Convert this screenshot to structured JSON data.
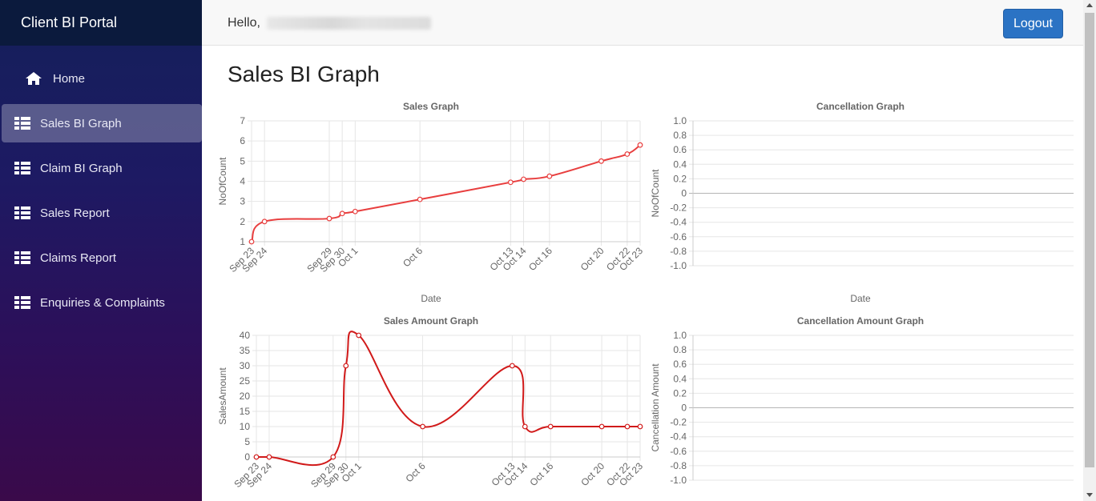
{
  "app": {
    "title": "Client BI Portal"
  },
  "sidebar": {
    "items": [
      {
        "label": "Home",
        "icon": "home-icon"
      },
      {
        "label": "Sales BI Graph",
        "icon": "dashboard-icon",
        "active": true
      },
      {
        "label": "Claim BI Graph",
        "icon": "dashboard-icon"
      },
      {
        "label": "Sales Report",
        "icon": "dashboard-icon"
      },
      {
        "label": "Claims Report",
        "icon": "dashboard-icon"
      },
      {
        "label": "Enquiries & Complaints",
        "icon": "dashboard-icon"
      }
    ]
  },
  "header": {
    "greeting": "Hello,",
    "logout_label": "Logout"
  },
  "page": {
    "title": "Sales BI Graph"
  },
  "colors": {
    "accent": "#2b73c4",
    "series": "#e83e3e",
    "series_dark": "#d11a1a"
  },
  "chart_data": [
    {
      "type": "line",
      "title": "Sales Graph",
      "xlabel": "Date",
      "ylabel": "NoOfCount",
      "x": [
        "Sep 23",
        "Sep 24",
        "Sep 29",
        "Sep 30",
        "Oct 1",
        "Oct 6",
        "Oct 13",
        "Oct 14",
        "Oct 16",
        "Oct 20",
        "Oct 22",
        "Oct 23"
      ],
      "y": [
        1,
        2,
        2.15,
        2.4,
        2.5,
        3.1,
        3.95,
        4.1,
        4.25,
        5.0,
        5.35,
        5.8
      ],
      "ylim": [
        1,
        7
      ],
      "yticks": [
        1,
        2,
        3,
        4,
        5,
        6,
        7
      ],
      "color": "#e83e3e"
    },
    {
      "type": "line",
      "title": "Cancellation Graph",
      "xlabel": "Date",
      "ylabel": "NoOfCount",
      "x": [],
      "y": [],
      "ylim": [
        -1,
        1
      ],
      "yticks": [
        "1.0",
        "0.8",
        "0.6",
        "0.4",
        "0.2",
        "0",
        "-0.2",
        "-0.4",
        "-0.6",
        "-0.8",
        "-1.0"
      ]
    },
    {
      "type": "line",
      "title": "Sales Amount Graph",
      "xlabel": "",
      "ylabel": "SalesAmount",
      "x": [
        "Sep 23",
        "Sep 24",
        "Sep 29",
        "Sep 30",
        "Oct 1",
        "Oct 6",
        "Oct 13",
        "Oct 14",
        "Oct 16",
        "Oct 20",
        "Oct 22",
        "Oct 23"
      ],
      "y": [
        0,
        0,
        0,
        30,
        40,
        10,
        30,
        10,
        10,
        10,
        10,
        10
      ],
      "ylim": [
        0,
        40
      ],
      "yticks": [
        0,
        5,
        10,
        15,
        20,
        25,
        30,
        35,
        40
      ],
      "color": "#d11a1a"
    },
    {
      "type": "line",
      "title": "Cancellation Amount Graph",
      "xlabel": "",
      "ylabel": "Cancellation Amount",
      "x": [],
      "y": [],
      "ylim": [
        -1,
        1
      ],
      "yticks": [
        "1.0",
        "0.8",
        "0.6",
        "0.4",
        "0.2",
        "0",
        "-0.2",
        "-0.4",
        "-0.6",
        "-0.8",
        "-1.0"
      ]
    }
  ]
}
